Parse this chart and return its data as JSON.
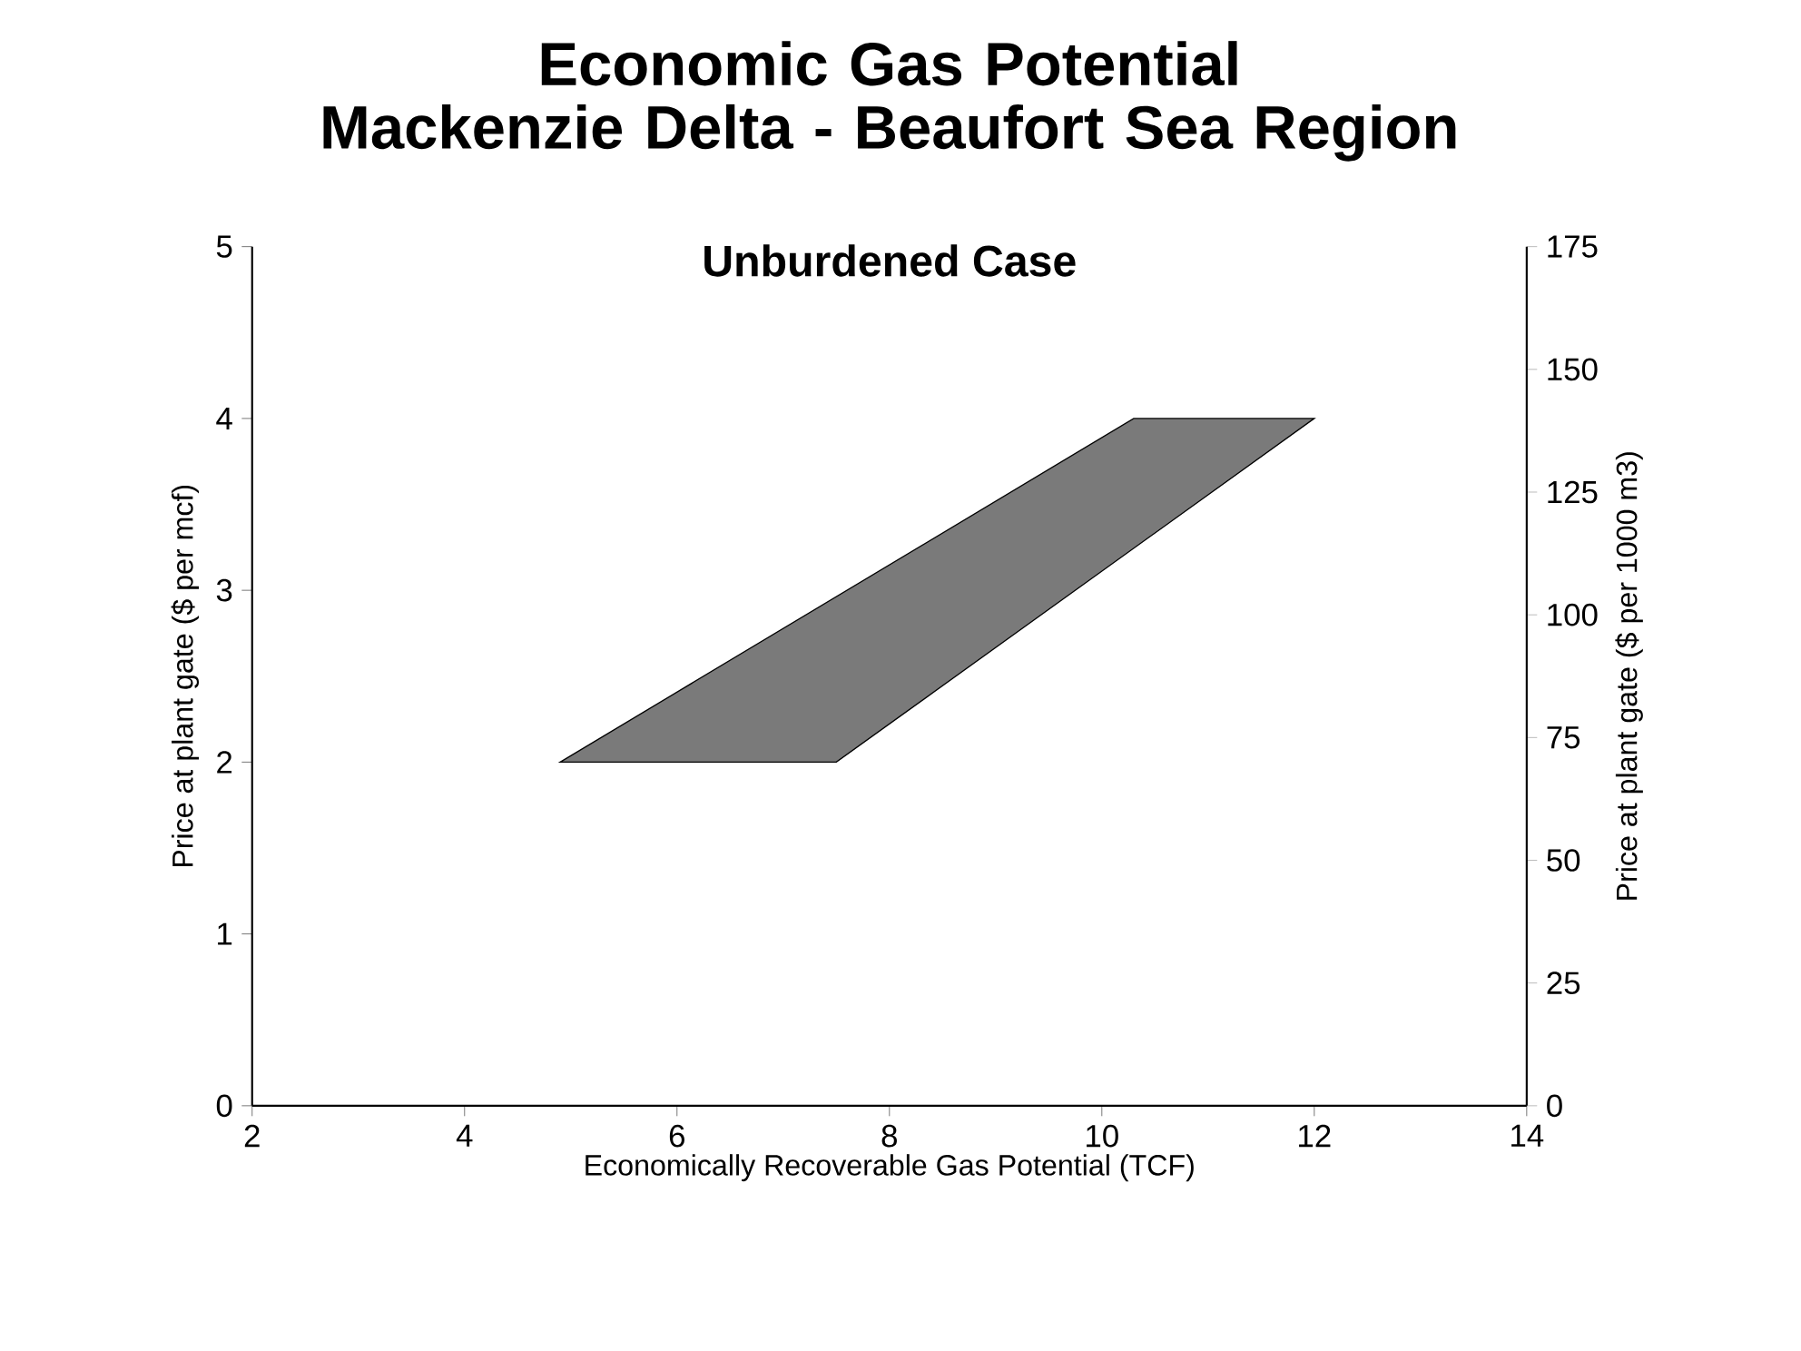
{
  "chart_data": {
    "type": "area",
    "title": "Economic Gas Potential\nMackenzie Delta - Beaufort Sea Region",
    "subtitle": "Unburdened Case",
    "xlabel": "Economically Recoverable Gas Potential (TCF)",
    "ylabel": "Price at plant gate ($ per mcf)",
    "y2label": "Price at plant gate ($ per 1000 m3)",
    "series": [
      {
        "color": "#7a7a7a",
        "x": [
          4.9,
          7.5,
          12.0,
          10.3
        ],
        "values": [
          2,
          2,
          4,
          4
        ]
      }
    ],
    "xlim": [
      2,
      14
    ],
    "xticks": [
      2,
      4,
      6,
      8,
      10,
      12,
      14
    ],
    "ylim": [
      0,
      5
    ],
    "yticks": [
      0,
      1,
      2,
      3,
      4,
      5
    ],
    "y2lim": [
      0,
      175
    ],
    "y2ticks": [
      0,
      25,
      50,
      75,
      100,
      125,
      150,
      175
    ],
    "grid": false
  }
}
